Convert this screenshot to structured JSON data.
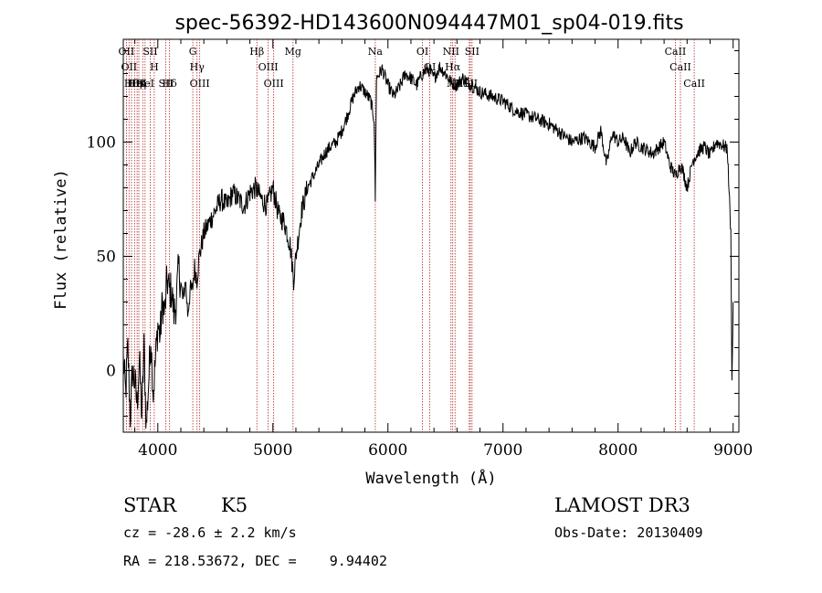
{
  "chart_data": {
    "type": "line",
    "title": "spec-56392-HD143600N094447M01_sp04-019.fits",
    "xlabel": "Wavelength (Å)",
    "ylabel": "Flux (relative)",
    "xlim": [
      3700,
      9050
    ],
    "ylim": [
      -27,
      145
    ],
    "xticks": [
      4000,
      5000,
      6000,
      7000,
      8000,
      9000
    ],
    "yticks": [
      0,
      50,
      100
    ],
    "grid": false,
    "line_color": "#000000",
    "marker_color": "#b22222",
    "series": [
      {
        "x": [
          3700,
          3720,
          3740,
          3760,
          3780,
          3800,
          3820,
          3840,
          3860,
          3880,
          3900,
          3920,
          3940,
          3960,
          3980,
          4000,
          4020,
          4040,
          4060,
          4080,
          4100,
          4120,
          4140,
          4160,
          4180,
          4200,
          4220,
          4240,
          4260,
          4280,
          4300,
          4320,
          4340,
          4360,
          4380,
          4400,
          4450,
          4500,
          4550,
          4600,
          4650,
          4700,
          4750,
          4800,
          4850,
          4900,
          4950,
          5000,
          5050,
          5100,
          5150,
          5180,
          5200,
          5250,
          5300,
          5350,
          5400,
          5450,
          5500,
          5550,
          5600,
          5650,
          5700,
          5750,
          5800,
          5850,
          5880,
          5890,
          5900,
          5950,
          6000,
          6050,
          6100,
          6150,
          6200,
          6250,
          6300,
          6350,
          6400,
          6450,
          6500,
          6550,
          6600,
          6650,
          6700,
          6750,
          6800,
          6900,
          7000,
          7100,
          7200,
          7300,
          7400,
          7500,
          7600,
          7700,
          7800,
          7850,
          7900,
          7950,
          8000,
          8050,
          8100,
          8150,
          8200,
          8300,
          8400,
          8450,
          8500,
          8540,
          8560,
          8600,
          8650,
          8700,
          8750,
          8800,
          8850,
          8900,
          8950,
          8980,
          8990,
          9000
        ],
        "y": [
          5,
          -10,
          10,
          -20,
          0,
          -5,
          -15,
          5,
          -20,
          10,
          -25,
          -5,
          15,
          -10,
          5,
          20,
          15,
          30,
          25,
          40,
          35,
          35,
          25,
          30,
          45,
          38,
          30,
          40,
          25,
          35,
          35,
          45,
          40,
          50,
          55,
          60,
          65,
          70,
          75,
          72,
          78,
          75,
          72,
          78,
          80,
          75,
          72,
          80,
          68,
          65,
          55,
          40,
          50,
          70,
          80,
          85,
          90,
          95,
          98,
          100,
          105,
          112,
          120,
          125,
          122,
          118,
          110,
          75,
          128,
          132,
          125,
          120,
          124,
          130,
          128,
          125,
          130,
          132,
          128,
          133,
          130,
          126,
          125,
          128,
          126,
          124,
          122,
          120,
          118,
          114,
          112,
          110,
          108,
          104,
          100,
          102,
          98,
          105,
          90,
          104,
          100,
          102,
          95,
          100,
          98,
          95,
          100,
          90,
          85,
          90,
          88,
          80,
          92,
          96,
          98,
          94,
          100,
          99,
          97,
          60,
          -5,
          30
        ]
      }
    ],
    "spectral_lines": [
      {
        "x": 3727,
        "label": "OII"
      },
      {
        "x": 3750,
        "label": "OII"
      },
      {
        "x": 3771,
        "label": "Hθ"
      },
      {
        "x": 3798,
        "label": "Hη"
      },
      {
        "x": 3820,
        "label": "HeI"
      },
      {
        "x": 3835,
        "label": "Hη"
      },
      {
        "x": 3869,
        "label": "K"
      },
      {
        "x": 3889,
        "label": "HeI"
      },
      {
        "x": 3934,
        "label": "SII"
      },
      {
        "x": 3969,
        "label": "H"
      },
      {
        "x": 4070,
        "label": "SII"
      },
      {
        "x": 4102,
        "label": "Hδ"
      },
      {
        "x": 4304,
        "label": "G"
      },
      {
        "x": 4341,
        "label": "Hγ"
      },
      {
        "x": 4364,
        "label": "OIII"
      },
      {
        "x": 4861,
        "label": "Hβ"
      },
      {
        "x": 4959,
        "label": "OIII"
      },
      {
        "x": 5007,
        "label": "OIII"
      },
      {
        "x": 5175,
        "label": "Mg"
      },
      {
        "x": 5890,
        "label": "Na"
      },
      {
        "x": 6300,
        "label": "OI"
      },
      {
        "x": 6364,
        "label": "OI"
      },
      {
        "x": 6548,
        "label": "NII"
      },
      {
        "x": 6563,
        "label": "Hα"
      },
      {
        "x": 6583,
        "label": "NII"
      },
      {
        "x": 6707,
        "label": "Li"
      },
      {
        "x": 6716,
        "label": "SII"
      },
      {
        "x": 6731,
        "label": "SII"
      },
      {
        "x": 8498,
        "label": "CaII"
      },
      {
        "x": 8542,
        "label": "CaII"
      },
      {
        "x": 8662,
        "label": "CaII"
      }
    ]
  },
  "info": {
    "object_class": "STAR",
    "subclass": "K5",
    "survey": "LAMOST DR3",
    "redshift": "cz = -28.6 ± 2.2 km/s",
    "obs_date": "Obs-Date: 20130409",
    "coords": "RA = 218.53672, DEC =    9.94402"
  }
}
